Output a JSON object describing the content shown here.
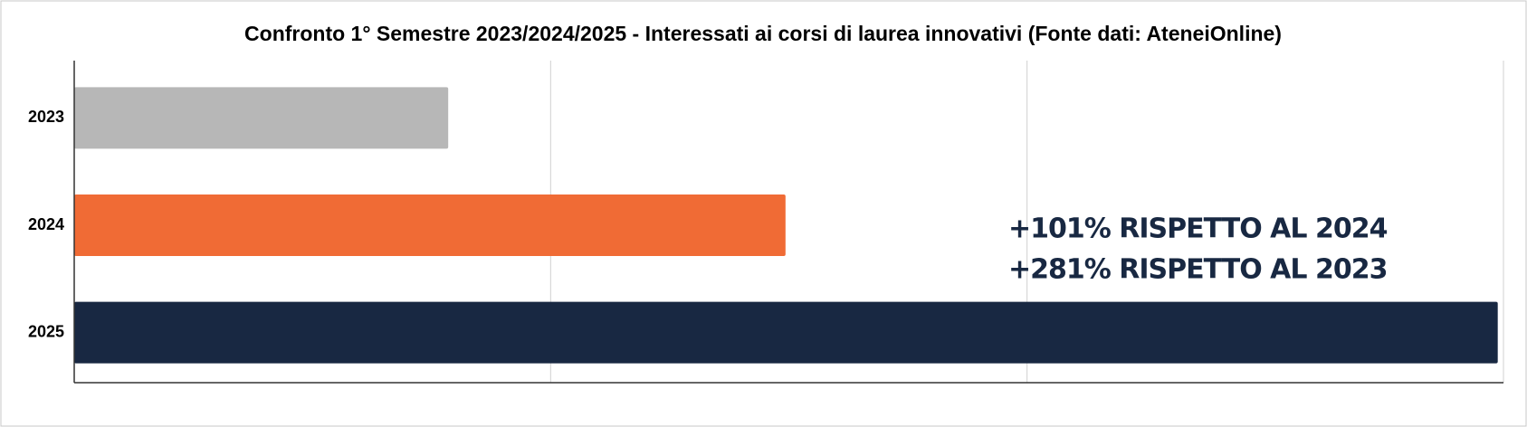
{
  "chart_data": {
    "type": "barh",
    "title": "Confronto 1° Semestre 2023/2024/2025 - Interessati ai corsi di laurea innovativi (Fonte dati: AteneiOnline)",
    "categories": [
      "2023",
      "2024",
      "2025"
    ],
    "values": [
      0.785,
      1.493,
      2.988
    ],
    "colors": [
      "#b7b7b7",
      "#f06b35",
      "#182842"
    ],
    "xlim": [
      0,
      3
    ],
    "xticks": [
      0,
      1,
      2,
      3
    ],
    "grid": true,
    "annotations": [
      "+101% RISPETTO AL 2024",
      "+281% RISPETTO AL 2023"
    ]
  }
}
